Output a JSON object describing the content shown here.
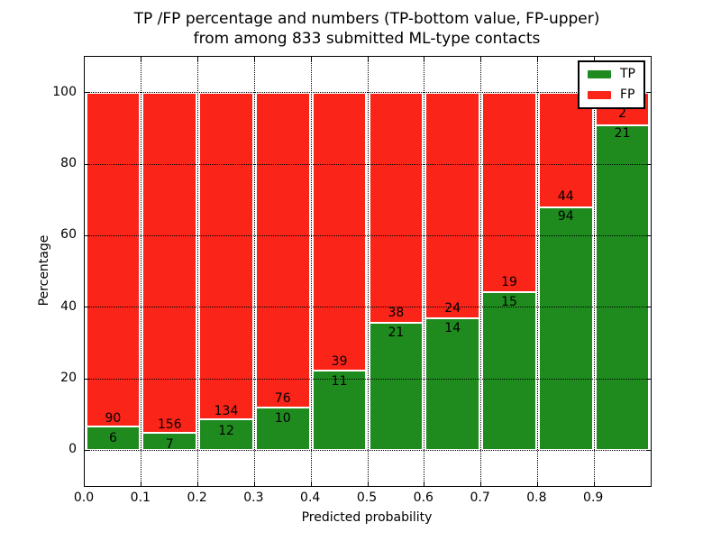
{
  "figure": {
    "title_line1": "TP /FP percentage and numbers (TP-bottom value, FP-upper)",
    "title_line2": "from among 833 submitted ML-type contacts"
  },
  "chart_data": {
    "type": "bar",
    "stacked": true,
    "normalized_to_percent": true,
    "title": "TP /FP percentage and numbers (TP-bottom value, FP-upper) from among 833 submitted ML-type contacts",
    "xlabel": "Predicted probability",
    "ylabel": "Percentage",
    "xlim": [
      0.0,
      1.0
    ],
    "ylim": [
      -10,
      110
    ],
    "grid": "dotted",
    "total_contacts": 833,
    "bin_width": 0.1,
    "x_tick_labels": [
      "0.0",
      "0.1",
      "0.2",
      "0.3",
      "0.4",
      "0.5",
      "0.6",
      "0.7",
      "0.8",
      "0.9"
    ],
    "y_tick_values": [
      0,
      20,
      40,
      60,
      80,
      100
    ],
    "series": [
      {
        "name": "TP",
        "color": "#1f8b1f",
        "counts": [
          6,
          7,
          12,
          10,
          11,
          21,
          14,
          15,
          94,
          21
        ]
      },
      {
        "name": "FP",
        "color": "#fa2419",
        "counts": [
          90,
          156,
          134,
          76,
          39,
          38,
          24,
          19,
          44,
          2
        ]
      }
    ],
    "tp_percent_per_bin": [
      6.25,
      4.29,
      8.22,
      11.63,
      22.0,
      35.59,
      36.84,
      44.12,
      68.12,
      91.3
    ],
    "legend": {
      "position": "upper right",
      "entries": [
        {
          "label": "TP",
          "color": "#1f8b1f"
        },
        {
          "label": "FP",
          "color": "#fa2419"
        }
      ]
    }
  }
}
